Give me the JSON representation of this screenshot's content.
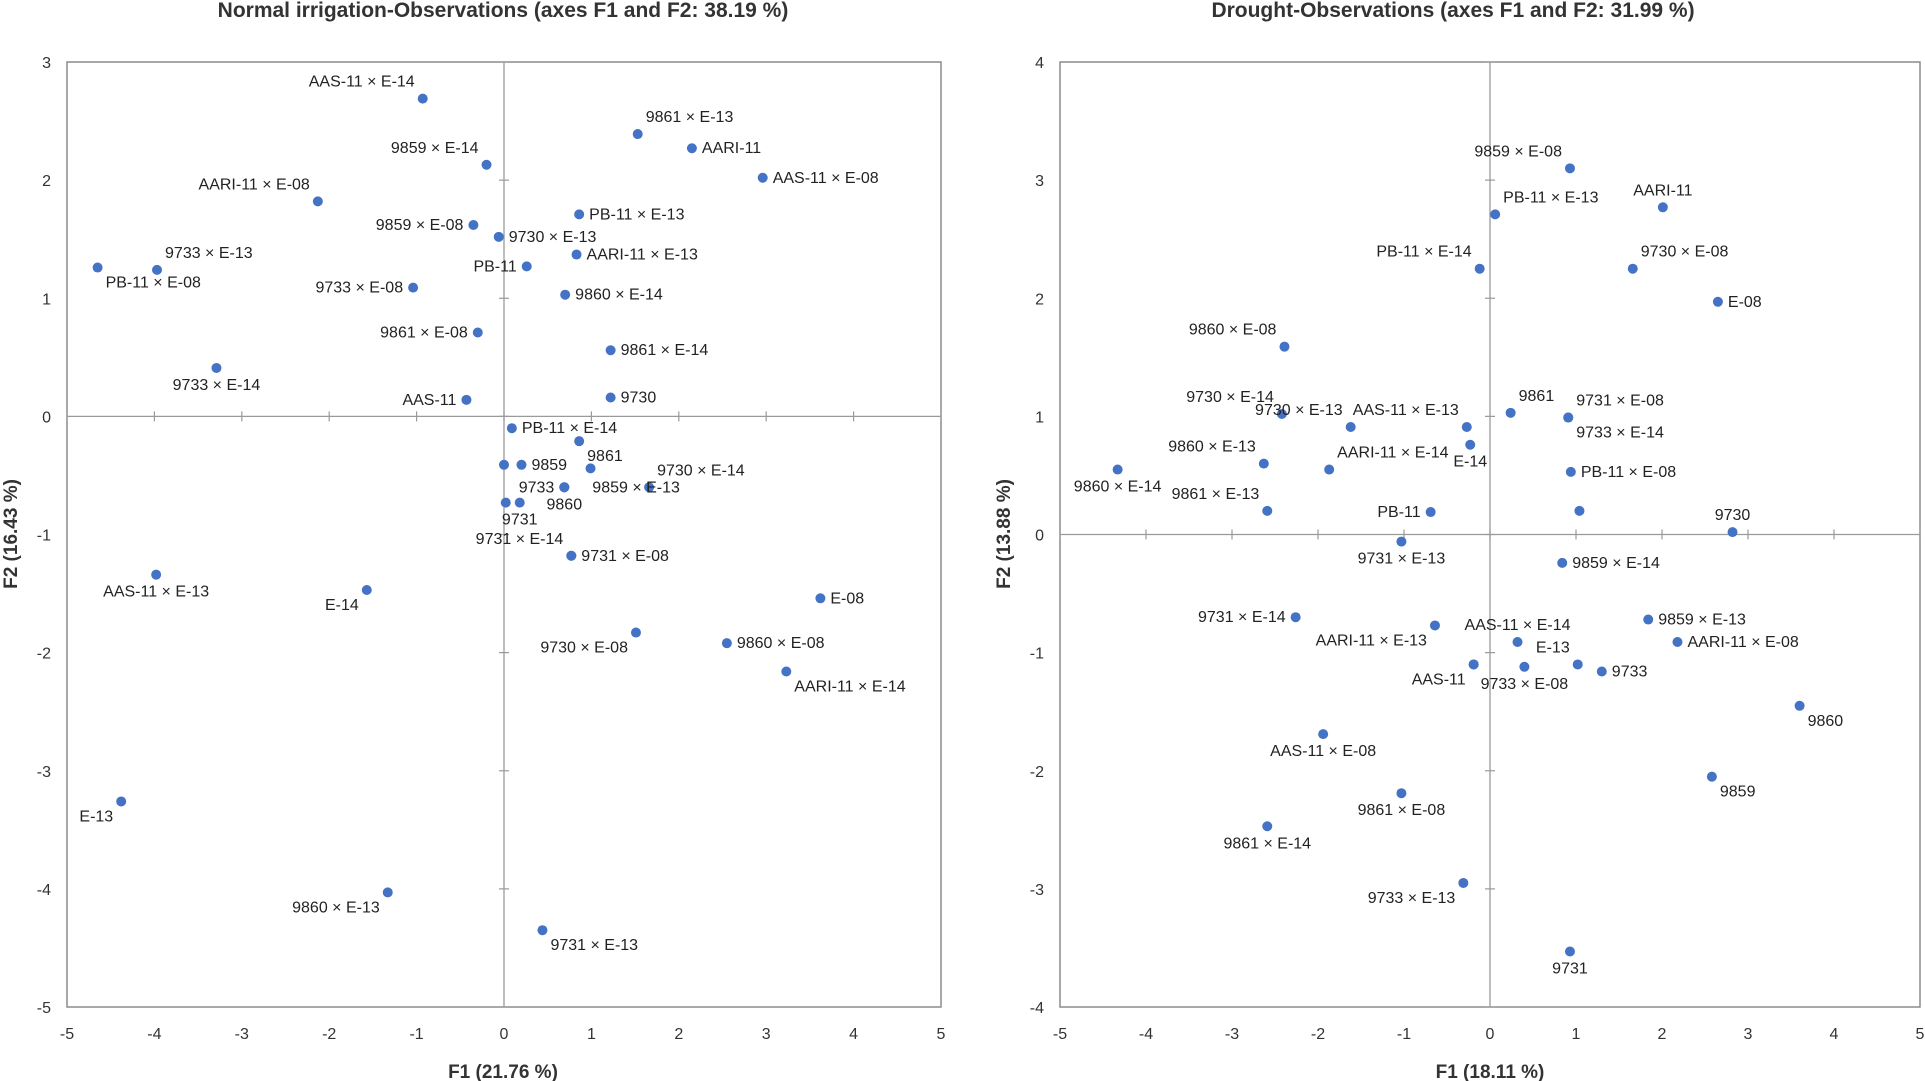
{
  "chart_data": [
    {
      "type": "scatter",
      "title": "Normal irrigation-Observations (axes F1 and F2: 38.19 %)",
      "xlabel": "F1 (21.76 %)",
      "ylabel": "F2 (16.43 %)",
      "xlim": [
        -5,
        5
      ],
      "ylim": [
        -5,
        3
      ],
      "xticks": [
        -5,
        -4,
        -3,
        -2,
        -1,
        0,
        1,
        2,
        3,
        4,
        5
      ],
      "yticks": [
        -5,
        -4,
        -3,
        -2,
        -1,
        0,
        1,
        2,
        3
      ],
      "grid": false,
      "point_color": "#4472c4",
      "points": [
        {
          "label": "AAS-11 × E-14",
          "x": -0.93,
          "y": 2.69,
          "pos": "tl"
        },
        {
          "label": "9861 × E-13",
          "x": 1.53,
          "y": 2.39,
          "pos": "tr"
        },
        {
          "label": "AARI-11",
          "x": 2.15,
          "y": 2.27,
          "pos": "r"
        },
        {
          "label": "9859 × E-14",
          "x": -0.2,
          "y": 2.13,
          "pos": "tl"
        },
        {
          "label": "AAS-11 × E-08",
          "x": 2.96,
          "y": 2.02,
          "pos": "r"
        },
        {
          "label": "AARI-11 × E-08",
          "x": -2.13,
          "y": 1.82,
          "pos": "tl"
        },
        {
          "label": "PB-11 × E-13",
          "x": 0.86,
          "y": 1.71,
          "pos": "r"
        },
        {
          "label": "9859 × E-08",
          "x": -0.35,
          "y": 1.62,
          "pos": "l"
        },
        {
          "label": "9730 × E-13",
          "x": -0.06,
          "y": 1.52,
          "pos": "r"
        },
        {
          "label": "PB-11",
          "x": 0.26,
          "y": 1.27,
          "pos": "l"
        },
        {
          "label": "AARI-11 × E-13",
          "x": 0.83,
          "y": 1.37,
          "pos": "r"
        },
        {
          "label": "9733 × E-13",
          "x": -3.97,
          "y": 1.24,
          "pos": "tr"
        },
        {
          "label": "PB-11 × E-08",
          "x": -4.65,
          "y": 1.26,
          "pos": "br"
        },
        {
          "label": "9733 × E-08",
          "x": -1.04,
          "y": 1.09,
          "pos": "l"
        },
        {
          "label": "9860 × E-14",
          "x": 0.7,
          "y": 1.03,
          "pos": "r"
        },
        {
          "label": "9861 × E-08",
          "x": -0.3,
          "y": 0.71,
          "pos": "l"
        },
        {
          "label": "9861 × E-14",
          "x": 1.22,
          "y": 0.56,
          "pos": "r"
        },
        {
          "label": "9733 × E-14",
          "x": -3.29,
          "y": 0.41,
          "pos": "b"
        },
        {
          "label": "AAS-11",
          "x": -0.43,
          "y": 0.14,
          "pos": "l"
        },
        {
          "label": "9730",
          "x": 1.22,
          "y": 0.16,
          "pos": "r"
        },
        {
          "label": "PB-11 × E-14",
          "x": 0.09,
          "y": -0.1,
          "pos": "r"
        },
        {
          "label": "9861",
          "x": 0.86,
          "y": -0.21,
          "pos": "br"
        },
        {
          "label": "",
          "x": 0.0,
          "y": -0.41,
          "pos": "r"
        },
        {
          "label": "9859",
          "x": 0.2,
          "y": -0.41,
          "pos": "r"
        },
        {
          "label": "",
          "x": 0.99,
          "y": -0.44,
          "pos": "r"
        },
        {
          "label": "9730 × E-14",
          "x": 1.66,
          "y": -0.6,
          "pos": "tr"
        },
        {
          "label": "9733",
          "x": 0.69,
          "y": -0.6,
          "pos": "l"
        },
        {
          "label": "9859 × E-13",
          "x": 0.69,
          "y": -0.6,
          "pos": "rr"
        },
        {
          "label": "9860",
          "x": 0.69,
          "y": -0.6,
          "pos": "b"
        },
        {
          "label": "",
          "x": 0.02,
          "y": -0.73,
          "pos": "r"
        },
        {
          "label": "9731",
          "x": 0.18,
          "y": -0.73,
          "pos": "b"
        },
        {
          "label": "9731 × E-14",
          "x": 0.77,
          "y": -1.18,
          "pos": "tl"
        },
        {
          "label": "9731 × E-08",
          "x": 0.77,
          "y": -1.18,
          "pos": "r"
        },
        {
          "label": "AAS-11 × E-13",
          "x": -3.98,
          "y": -1.34,
          "pos": "b"
        },
        {
          "label": "E-14",
          "x": -1.57,
          "y": -1.47,
          "pos": "bl"
        },
        {
          "label": "E-08",
          "x": 3.62,
          "y": -1.54,
          "pos": "r"
        },
        {
          "label": "9730 × E-08",
          "x": 1.51,
          "y": -1.83,
          "pos": "bl"
        },
        {
          "label": "9860 × E-08",
          "x": 2.55,
          "y": -1.92,
          "pos": "r"
        },
        {
          "label": "AARI-11 × E-14",
          "x": 3.23,
          "y": -2.16,
          "pos": "br"
        },
        {
          "label": "E-13",
          "x": -4.38,
          "y": -3.26,
          "pos": "bl"
        },
        {
          "label": "9860 × E-13",
          "x": -1.33,
          "y": -4.03,
          "pos": "bl"
        },
        {
          "label": "9731 × E-13",
          "x": 0.44,
          "y": -4.35,
          "pos": "br"
        }
      ]
    },
    {
      "type": "scatter",
      "title": "Drought-Observations (axes F1 and F2: 31.99 %)",
      "xlabel": "F1 (18.11 %)",
      "ylabel": "F2 (13.88 %)",
      "xlim": [
        -5,
        5
      ],
      "ylim": [
        -4,
        4
      ],
      "xticks": [
        -5,
        -4,
        -3,
        -2,
        -1,
        0,
        1,
        2,
        3,
        4,
        5
      ],
      "yticks": [
        -4,
        -3,
        -2,
        -1,
        0,
        1,
        2,
        3,
        4
      ],
      "grid": false,
      "point_color": "#4472c4",
      "points": [
        {
          "label": "9859 × E-08",
          "x": 0.93,
          "y": 3.1,
          "pos": "tl"
        },
        {
          "label": "AARI-11",
          "x": 2.01,
          "y": 2.77,
          "pos": "t"
        },
        {
          "label": "PB-11 × E-13",
          "x": 0.06,
          "y": 2.71,
          "pos": "tr"
        },
        {
          "label": "9730 × E-08",
          "x": 1.66,
          "y": 2.25,
          "pos": "tr"
        },
        {
          "label": "PB-11 × E-14",
          "x": -0.12,
          "y": 2.25,
          "pos": "tl"
        },
        {
          "label": "E-08",
          "x": 2.65,
          "y": 1.97,
          "pos": "r"
        },
        {
          "label": "9860 × E-08",
          "x": -2.39,
          "y": 1.59,
          "pos": "tl"
        },
        {
          "label": "9861",
          "x": 0.24,
          "y": 1.03,
          "pos": "tr"
        },
        {
          "label": "9731 × E-08",
          "x": 0.91,
          "y": 0.99,
          "pos": "tr"
        },
        {
          "label": "9730 × E-14",
          "x": -2.42,
          "y": 1.02,
          "pos": "tl"
        },
        {
          "label": "9730 × E-13",
          "x": -1.62,
          "y": 0.91,
          "pos": "tl"
        },
        {
          "label": "AAS-11 × E-13",
          "x": -0.27,
          "y": 0.91,
          "pos": "tl"
        },
        {
          "label": "9733 × E-14",
          "x": 0.91,
          "y": 0.99,
          "pos": "br"
        },
        {
          "label": "E-14",
          "x": -0.23,
          "y": 0.76,
          "pos": "b"
        },
        {
          "label": "AARI-11 × E-14",
          "x": -1.87,
          "y": 0.55,
          "pos": "tr"
        },
        {
          "label": "9860 × E-13",
          "x": -2.63,
          "y": 0.6,
          "pos": "tl"
        },
        {
          "label": "9860 × E-14",
          "x": -4.33,
          "y": 0.55,
          "pos": "b"
        },
        {
          "label": "PB-11 × E-08",
          "x": 0.94,
          "y": 0.53,
          "pos": "r"
        },
        {
          "label": "9861 × E-13",
          "x": -2.59,
          "y": 0.2,
          "pos": "tl"
        },
        {
          "label": "PB-11",
          "x": -0.69,
          "y": 0.19,
          "pos": "l"
        },
        {
          "label": "",
          "x": 1.04,
          "y": 0.2,
          "pos": "r"
        },
        {
          "label": "9730",
          "x": 2.82,
          "y": 0.02,
          "pos": "t"
        },
        {
          "label": "9731 × E-13",
          "x": -1.03,
          "y": -0.06,
          "pos": "b"
        },
        {
          "label": "9859 × E-14",
          "x": 0.84,
          "y": -0.24,
          "pos": "r"
        },
        {
          "label": "9731 × E-14",
          "x": -2.26,
          "y": -0.7,
          "pos": "l"
        },
        {
          "label": "AARI-11 × E-13",
          "x": -0.64,
          "y": -0.77,
          "pos": "bl"
        },
        {
          "label": "AAS-11 × E-14",
          "x": 0.32,
          "y": -0.91,
          "pos": "t"
        },
        {
          "label": "9859 × E-13",
          "x": 1.84,
          "y": -0.72,
          "pos": "r"
        },
        {
          "label": "AARI-11 × E-08",
          "x": 2.18,
          "y": -0.91,
          "pos": "r"
        },
        {
          "label": "E-13",
          "x": 1.02,
          "y": -1.1,
          "pos": "tl"
        },
        {
          "label": "",
          "x": -0.19,
          "y": -1.1,
          "pos": "r"
        },
        {
          "label": "AAS-11",
          "x": -0.19,
          "y": -1.1,
          "pos": "bl"
        },
        {
          "label": "9733 × E-08",
          "x": 0.4,
          "y": -1.12,
          "pos": "b"
        },
        {
          "label": "9733",
          "x": 1.3,
          "y": -1.16,
          "pos": "r"
        },
        {
          "label": "9860",
          "x": 3.6,
          "y": -1.45,
          "pos": "br"
        },
        {
          "label": "AAS-11 × E-08",
          "x": -1.94,
          "y": -1.69,
          "pos": "b"
        },
        {
          "label": "9859",
          "x": 2.58,
          "y": -2.05,
          "pos": "br"
        },
        {
          "label": "9861 × E-08",
          "x": -1.03,
          "y": -2.19,
          "pos": "b"
        },
        {
          "label": "9861 × E-14",
          "x": -2.59,
          "y": -2.47,
          "pos": "b"
        },
        {
          "label": "9733 × E-13",
          "x": -0.31,
          "y": -2.95,
          "pos": "bl"
        },
        {
          "label": "9731",
          "x": 0.93,
          "y": -3.53,
          "pos": "b"
        }
      ]
    }
  ]
}
